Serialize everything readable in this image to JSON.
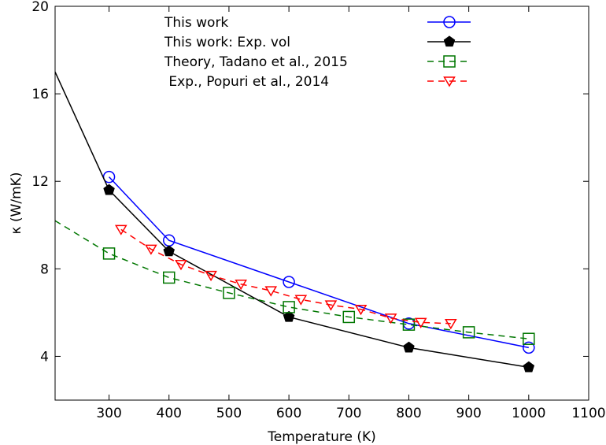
{
  "chart_data": {
    "type": "line",
    "xlabel": "Temperature (K)",
    "ylabel": "κ (W/mK)",
    "xlim": [
      210,
      1100
    ],
    "ylim": [
      2,
      20
    ],
    "xticks": [
      300,
      400,
      500,
      600,
      700,
      800,
      900,
      1000,
      1100
    ],
    "yticks": [
      4,
      8,
      12,
      16,
      20
    ],
    "legend_position": "top",
    "series": [
      {
        "name": "This work",
        "color": "#0000ff",
        "line": "solid",
        "marker": "open-circle",
        "x": [
          300,
          400,
          600,
          800,
          1000
        ],
        "y": [
          12.2,
          9.3,
          7.4,
          5.5,
          4.4
        ]
      },
      {
        "name": "This work: Exp. vol",
        "color": "#000000",
        "line": "solid",
        "marker": "filled-pentagon",
        "x": [
          210,
          300,
          400,
          600,
          800,
          1000
        ],
        "y": [
          17.0,
          11.6,
          8.8,
          5.8,
          4.4,
          3.5
        ],
        "marker_indices": [
          1,
          2,
          3,
          4,
          5
        ]
      },
      {
        "name": "Theory, Tadano et al., 2015",
        "color": "#007700",
        "line": "dashed",
        "marker": "open-square",
        "x": [
          210,
          300,
          400,
          500,
          600,
          700,
          800,
          900,
          1000
        ],
        "y": [
          10.2,
          8.7,
          7.6,
          6.9,
          6.25,
          5.8,
          5.45,
          5.1,
          4.8
        ],
        "marker_indices": [
          1,
          2,
          3,
          4,
          5,
          6,
          7,
          8
        ]
      },
      {
        "name": " Exp., Popuri et al., 2014",
        "color": "#ff0000",
        "line": "dashed",
        "marker": "open-down-triangle",
        "x": [
          320,
          370,
          420,
          470,
          520,
          570,
          620,
          670,
          720,
          770,
          820,
          870
        ],
        "y": [
          9.8,
          8.9,
          8.2,
          7.7,
          7.3,
          7.0,
          6.6,
          6.35,
          6.15,
          5.75,
          5.55,
          5.5
        ]
      }
    ]
  }
}
